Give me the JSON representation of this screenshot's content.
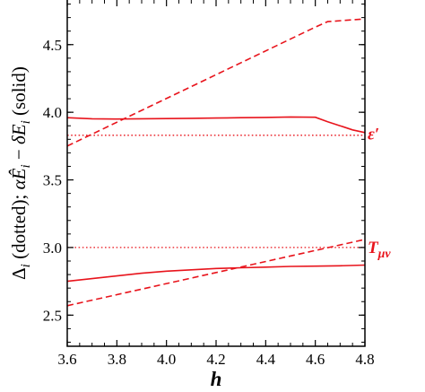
{
  "colors": {
    "series": "#e8141c",
    "axis": "#000000",
    "background": "#ffffff"
  },
  "chart_data": {
    "type": "line",
    "xlabel": "h",
    "ylabel_parts": [
      "Δ",
      "i",
      " (dotted);  ",
      "α",
      "Ê",
      "i",
      " − ",
      "δ",
      "E",
      "i",
      " (solid)"
    ],
    "xlim": [
      3.6,
      4.8
    ],
    "ylim": [
      2.27,
      4.83
    ],
    "xticks": [
      3.6,
      3.8,
      4.0,
      4.2,
      4.4,
      4.6,
      4.8
    ],
    "xtick_labels": [
      "3.6",
      "3.8",
      "4.0",
      "4.2",
      "4.4",
      "4.6",
      "4.8"
    ],
    "yticks": [
      2.5,
      3.0,
      3.5,
      4.0,
      4.5
    ],
    "ytick_labels": [
      "2.5",
      "3.0",
      "3.5",
      "4.0",
      "4.5"
    ],
    "grid": false,
    "series_labels": [
      {
        "text": "ε′",
        "y": 3.84
      },
      {
        "text": "T",
        "sub": "μν",
        "y": 3.0
      }
    ],
    "series": [
      {
        "style": "dotted",
        "x": [
          3.6,
          4.8
        ],
        "y": [
          3.83,
          3.83
        ]
      },
      {
        "style": "dotted",
        "x": [
          3.6,
          4.8
        ],
        "y": [
          3.0,
          3.0
        ]
      },
      {
        "style": "solid",
        "x": [
          3.6,
          3.7,
          3.8,
          3.9,
          4.0,
          4.1,
          4.2,
          4.3,
          4.4,
          4.5,
          4.6,
          4.65,
          4.7,
          4.75,
          4.8
        ],
        "y": [
          3.96,
          3.952,
          3.95,
          3.952,
          3.953,
          3.955,
          3.957,
          3.96,
          3.962,
          3.965,
          3.963,
          3.93,
          3.9,
          3.87,
          3.85
        ]
      },
      {
        "style": "solid",
        "x": [
          3.6,
          3.7,
          3.8,
          3.9,
          4.0,
          4.1,
          4.2,
          4.3,
          4.4,
          4.5,
          4.6,
          4.7,
          4.8
        ],
        "y": [
          2.75,
          2.77,
          2.79,
          2.81,
          2.825,
          2.835,
          2.845,
          2.85,
          2.855,
          2.86,
          2.862,
          2.865,
          2.87
        ]
      },
      {
        "style": "dashed",
        "x": [
          3.6,
          4.6,
          4.65,
          4.8
        ],
        "y": [
          3.75,
          4.63,
          4.67,
          4.69
        ]
      },
      {
        "style": "dashed",
        "x": [
          3.6,
          4.8
        ],
        "y": [
          2.57,
          3.06
        ]
      }
    ]
  }
}
